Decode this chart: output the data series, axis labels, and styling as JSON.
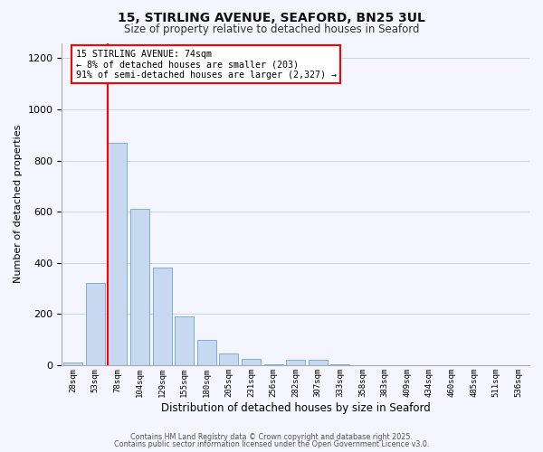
{
  "title_line1": "15, STIRLING AVENUE, SEAFORD, BN25 3UL",
  "title_line2": "Size of property relative to detached houses in Seaford",
  "xlabel": "Distribution of detached houses by size in Seaford",
  "ylabel": "Number of detached properties",
  "bar_labels": [
    "28sqm",
    "53sqm",
    "78sqm",
    "104sqm",
    "129sqm",
    "155sqm",
    "180sqm",
    "205sqm",
    "231sqm",
    "256sqm",
    "282sqm",
    "307sqm",
    "333sqm",
    "358sqm",
    "383sqm",
    "409sqm",
    "434sqm",
    "460sqm",
    "485sqm",
    "511sqm",
    "536sqm"
  ],
  "bar_heights": [
    10,
    320,
    870,
    610,
    380,
    190,
    100,
    45,
    25,
    5,
    20,
    20,
    2,
    0,
    0,
    0,
    0,
    0,
    0,
    0,
    0
  ],
  "bar_color": "#c6d9f0",
  "bar_edge_color": "#7bafd4",
  "ylim": [
    0,
    1260
  ],
  "yticks": [
    0,
    200,
    400,
    600,
    800,
    1000,
    1200
  ],
  "red_line_x": 1.575,
  "annotation_title": "15 STIRLING AVENUE: 74sqm",
  "annotation_line1": "← 8% of detached houses are smaller (203)",
  "annotation_line2": "91% of semi-detached houses are larger (2,327) →",
  "footer_line1": "Contains HM Land Registry data © Crown copyright and database right 2025.",
  "footer_line2": "Contains public sector information licensed under the Open Government Licence v3.0.",
  "bg_color": "#f5f5ff",
  "grid_color": "#c8d4e8"
}
